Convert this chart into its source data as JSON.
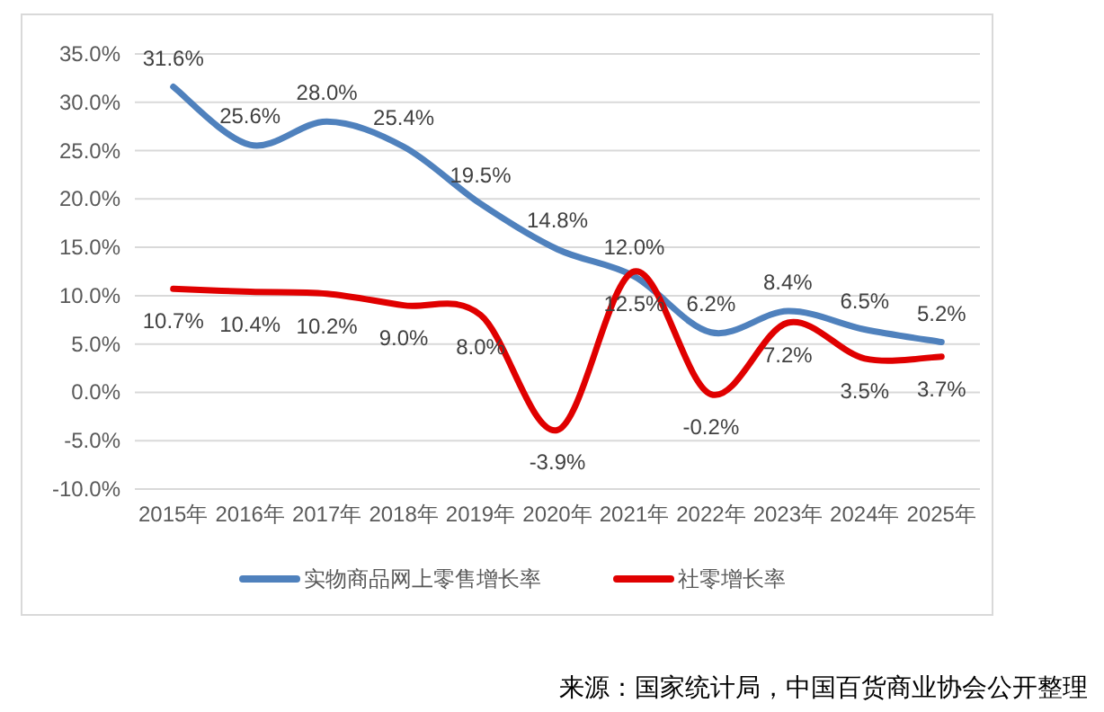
{
  "chart_data": {
    "type": "line",
    "categories": [
      "2015年",
      "2016年",
      "2017年",
      "2018年",
      "2019年",
      "2020年",
      "2021年",
      "2022年",
      "2023年",
      "2024年",
      "2025年"
    ],
    "series": [
      {
        "name": "实物商品网上零售增长率",
        "color": "#4f81bd",
        "values": [
          31.6,
          25.6,
          28.0,
          25.4,
          19.5,
          14.8,
          12.0,
          6.2,
          8.4,
          6.5,
          5.2
        ],
        "value_labels": [
          "31.6%",
          "25.6%",
          "28.0%",
          "25.4%",
          "19.5%",
          "14.8%",
          "12.0%",
          "6.2%",
          "8.4%",
          "6.5%",
          "5.2%"
        ]
      },
      {
        "name": "社零增长率",
        "color": "#e00000",
        "values": [
          10.7,
          10.4,
          10.2,
          9.0,
          8.0,
          -3.9,
          12.5,
          -0.2,
          7.2,
          3.5,
          3.7
        ],
        "value_labels": [
          "10.7%",
          "10.4%",
          "10.2%",
          "9.0%",
          "8.0%",
          "-3.9%",
          "12.5%",
          "-0.2%",
          "7.2%",
          "3.5%",
          "3.7%"
        ]
      }
    ],
    "ylim": [
      -10,
      35
    ],
    "yticks": [
      {
        "value": -10,
        "label": "-10.0%"
      },
      {
        "value": -5,
        "label": "-5.0%"
      },
      {
        "value": 0,
        "label": "0.0%"
      },
      {
        "value": 5,
        "label": "5.0%"
      },
      {
        "value": 10,
        "label": "10.0%"
      },
      {
        "value": 15,
        "label": "15.0%"
      },
      {
        "value": 20,
        "label": "20.0%"
      },
      {
        "value": 25,
        "label": "25.0%"
      },
      {
        "value": 30,
        "label": "30.0%"
      },
      {
        "value": 35,
        "label": "35.0%"
      }
    ],
    "grid": "y",
    "legend": "bottom",
    "marker": "none",
    "annotations": [
      "来源：国家统计局，中国百货商业协会公开整理"
    ]
  }
}
